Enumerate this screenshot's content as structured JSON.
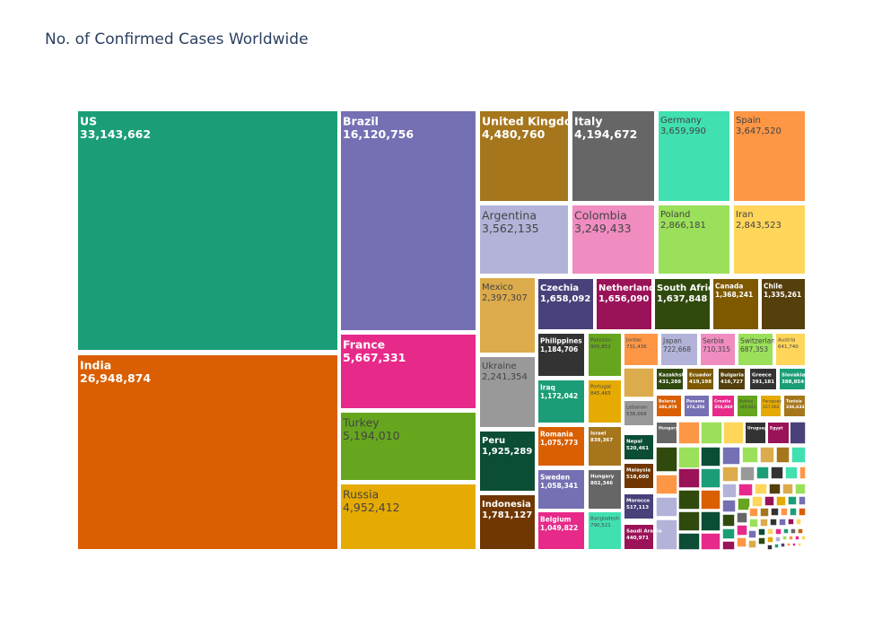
{
  "chart_data": {
    "type": "treemap",
    "title": "No. of Confirmed Cases Worldwide",
    "items": [
      {
        "label": "US",
        "value": "33,143,662",
        "color": "#1b9e77"
      },
      {
        "label": "India",
        "value": "26,948,874",
        "color": "#d95f02"
      },
      {
        "label": "Brazil",
        "value": "16,120,756",
        "color": "#7570b3"
      },
      {
        "label": "France",
        "value": "5,667,331",
        "color": "#e7298a"
      },
      {
        "label": "Turkey",
        "value": "5,194,010",
        "color": "#66a61e"
      },
      {
        "label": "Russia",
        "value": "4,952,412",
        "color": "#e6ab02"
      },
      {
        "label": "United Kingdom",
        "value": "4,480,760",
        "color": "#a6761d"
      },
      {
        "label": "Italy",
        "value": "4,194,672",
        "color": "#666666"
      },
      {
        "label": "Germany",
        "value": "3,659,990",
        "color": "#40e0b0"
      },
      {
        "label": "Spain",
        "value": "3,647,520",
        "color": "#fd9645"
      },
      {
        "label": "Argentina",
        "value": "3,562,135",
        "color": "#b3b3d9"
      },
      {
        "label": "Colombia",
        "value": "3,249,433",
        "color": "#f08cc0"
      },
      {
        "label": "Poland",
        "value": "2,866,181",
        "color": "#9be05a"
      },
      {
        "label": "Iran",
        "value": "2,843,523",
        "color": "#ffd55a"
      },
      {
        "label": "Mexico",
        "value": "2,397,307",
        "color": "#dcab4b"
      },
      {
        "label": "Ukraine",
        "value": "2,241,354",
        "color": "#999999"
      },
      {
        "label": "Peru",
        "value": "1,925,289",
        "color": "#0b4d35"
      },
      {
        "label": "Indonesia",
        "value": "1,781,127",
        "color": "#703702"
      },
      {
        "label": "Czechia",
        "value": "1,658,092",
        "color": "#48417a"
      },
      {
        "label": "Netherlands",
        "value": "1,656,090",
        "color": "#9a1258"
      },
      {
        "label": "South Africa",
        "value": "1,637,848",
        "color": "#304a0e"
      },
      {
        "label": "Canada",
        "value": "1,368,241",
        "color": "#7e5900"
      },
      {
        "label": "Chile",
        "value": "1,335,261",
        "color": "#553f0c"
      },
      {
        "label": "Philippines",
        "value": "1,184,706",
        "color": "#333333"
      },
      {
        "label": "Pakistan",
        "value": "905,852",
        "color": "#66a61e"
      },
      {
        "label": "Iraq",
        "value": "1,172,042",
        "color": "#1b9e77"
      },
      {
        "label": "Portugal",
        "value": "845,465",
        "color": "#e6ab02"
      },
      {
        "label": "Romania",
        "value": "1,075,773",
        "color": "#d95f02"
      },
      {
        "label": "Israel",
        "value": "839,367",
        "color": "#a6761d"
      },
      {
        "label": "Sweden",
        "value": "1,058,341",
        "color": "#7570b3"
      },
      {
        "label": "Hungary",
        "value": "802,346",
        "color": "#666666"
      },
      {
        "label": "Belgium",
        "value": "1,049,822",
        "color": "#e7298a"
      },
      {
        "label": "Bangladesh",
        "value": "790,521",
        "color": "#40e0b0"
      },
      {
        "label": "Jordan",
        "value": "731,436",
        "color": "#fd9645"
      },
      {
        "label": "Japan",
        "value": "722,668",
        "color": "#b3b3d9"
      },
      {
        "label": "Serbia",
        "value": "710,315",
        "color": "#f08cc0"
      },
      {
        "label": "Switzerland",
        "value": "687,353",
        "color": "#9be05a"
      },
      {
        "label": "Austria",
        "value": "641,740",
        "color": "#ffd55a"
      },
      {
        "label": "Lebanon",
        "value": "536,668",
        "color": "#999999"
      },
      {
        "label": "Nepal",
        "value": "520,461",
        "color": "#0b4d35"
      },
      {
        "label": "Malaysia",
        "value": "518,600",
        "color": "#703702"
      },
      {
        "label": "Morocco",
        "value": "517,113",
        "color": "#48417a"
      },
      {
        "label": "Saudi Arabia",
        "value": "440,971",
        "color": "#9a1258"
      },
      {
        "label": "Kazakhstan",
        "value": "431,288",
        "color": "#304a0e"
      },
      {
        "label": "Ecuador",
        "value": "419,198",
        "color": "#7e5900"
      },
      {
        "label": "Bulgaria",
        "value": "416,727",
        "color": "#553f0c"
      },
      {
        "label": "Greece",
        "value": "391,181",
        "color": "#333333"
      },
      {
        "label": "Slovakia",
        "value": "388,854",
        "color": "#1b9e77"
      },
      {
        "label": "Belarus",
        "value": "386,978",
        "color": "#d95f02"
      },
      {
        "label": "Panama",
        "value": "374,356",
        "color": "#7570b3"
      },
      {
        "label": "Croatia",
        "value": "354,060",
        "color": "#e7298a"
      },
      {
        "label": "Bolivia",
        "value": "349,641",
        "color": "#66a61e"
      },
      {
        "label": "Paraguay",
        "value": "337,062",
        "color": "#e6ab02"
      },
      {
        "label": "Tunisia",
        "value": "336,634",
        "color": "#a6761d"
      },
      {
        "label": "Hungary",
        "value": "",
        "color": "#666666"
      },
      {
        "label": "Uruguay",
        "value": "",
        "color": "#333333"
      },
      {
        "label": "Egypt",
        "value": "",
        "color": "#9a1258"
      }
    ]
  }
}
